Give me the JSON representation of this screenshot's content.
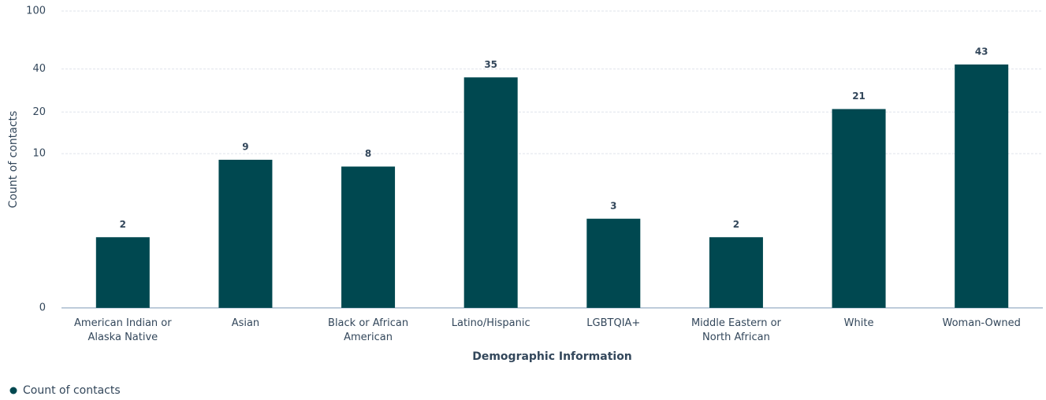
{
  "chart_data": {
    "type": "bar",
    "xlabel": "Demographic Information",
    "ylabel": "Count of contacts",
    "categories": [
      "American Indian or Alaska Native",
      "Asian",
      "Black or African American",
      "Latino/Hispanic",
      "LGBTQIA+",
      "Middle Eastern or North African",
      "White",
      "Woman-Owned"
    ],
    "series": [
      {
        "name": "Count of contacts",
        "color": "#004850",
        "values": [
          2,
          9,
          8,
          35,
          3,
          2,
          21,
          43
        ]
      }
    ],
    "ylim": [
      0,
      100
    ],
    "yticks": [
      0,
      10,
      20,
      40,
      100
    ],
    "yscale": "symlog",
    "grid": true,
    "legend": "bottom-left"
  }
}
